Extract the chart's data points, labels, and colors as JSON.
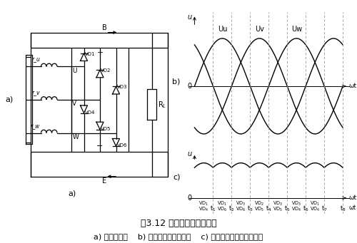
{
  "bg_color": "#ffffff",
  "title_text": "图3.12 交流发电机整流原理",
  "caption_text": "a) 整流电路图    b) 三相统组电压波形图    c) 整流后发电机输出波形图",
  "title_fontsize": 9,
  "caption_fontsize": 8,
  "fig_width": 5.0,
  "fig_height": 3.41,
  "dpi": 100,
  "sine_labels": [
    "Uu",
    "Uv",
    "Uw"
  ],
  "phase_offsets": [
    0,
    2.0944,
    4.1888
  ],
  "t_labels": [
    "t1",
    "t2",
    "t3",
    "t4",
    "t5",
    "t6",
    "t7",
    "t8"
  ],
  "vd_top_labels": [
    "VD1",
    "VD1",
    "VD3",
    "VD2",
    "VD3",
    "VD3",
    "VD1"
  ],
  "vd_bot_labels": [
    "VD4",
    "VD6",
    "VD6",
    "VD5",
    "VD5",
    "VD4",
    "VD4"
  ],
  "line_color": "#000000",
  "dashed_color": "#999999",
  "lw": 0.9
}
